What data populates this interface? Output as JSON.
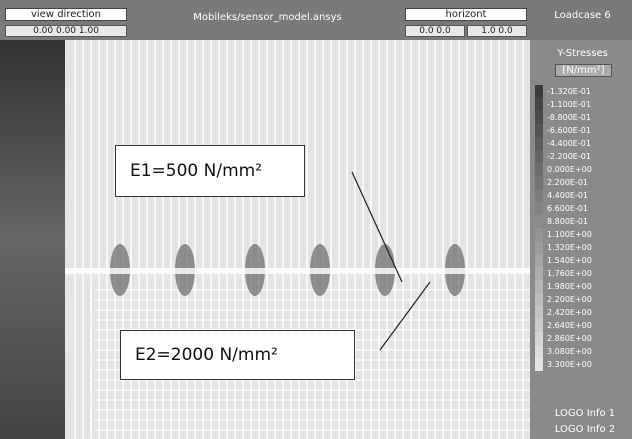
{
  "header": {
    "view_label": "view direction",
    "view_value": "0.00 0.00 1.00",
    "title": "Mobileks/sensor_model.ansys",
    "horizont_label": "horizont",
    "horizont_values": [
      "0.0 0.0",
      "1.0 0.0"
    ],
    "loadcase": "Loadcase 6"
  },
  "legend": {
    "title": "Y-Stresses",
    "unit": "[N/mm²]",
    "entries": [
      "-1.320E-01",
      "-1.100E-01",
      "-8.800E-01",
      "-6.600E-01",
      "-4.400E-01",
      "-2.200E-01",
      "0.000E+00",
      "2.200E-01",
      "4.400E-01",
      "6.600E-01",
      "8.800E-01",
      "1.100E+00",
      "1.320E+00",
      "1.540E+00",
      "1.760E+00",
      "1.980E+00",
      "2.200E+00",
      "2.420E+00",
      "2.640E+00",
      "2.860E+00",
      "3.080E+00",
      "3.300E+00"
    ]
  },
  "footer": [
    "LOGO Info 1",
    "LOGO Info 2"
  ],
  "callouts": [
    "E1=500 N/mm²",
    "E2=2000 N/mm²"
  ]
}
